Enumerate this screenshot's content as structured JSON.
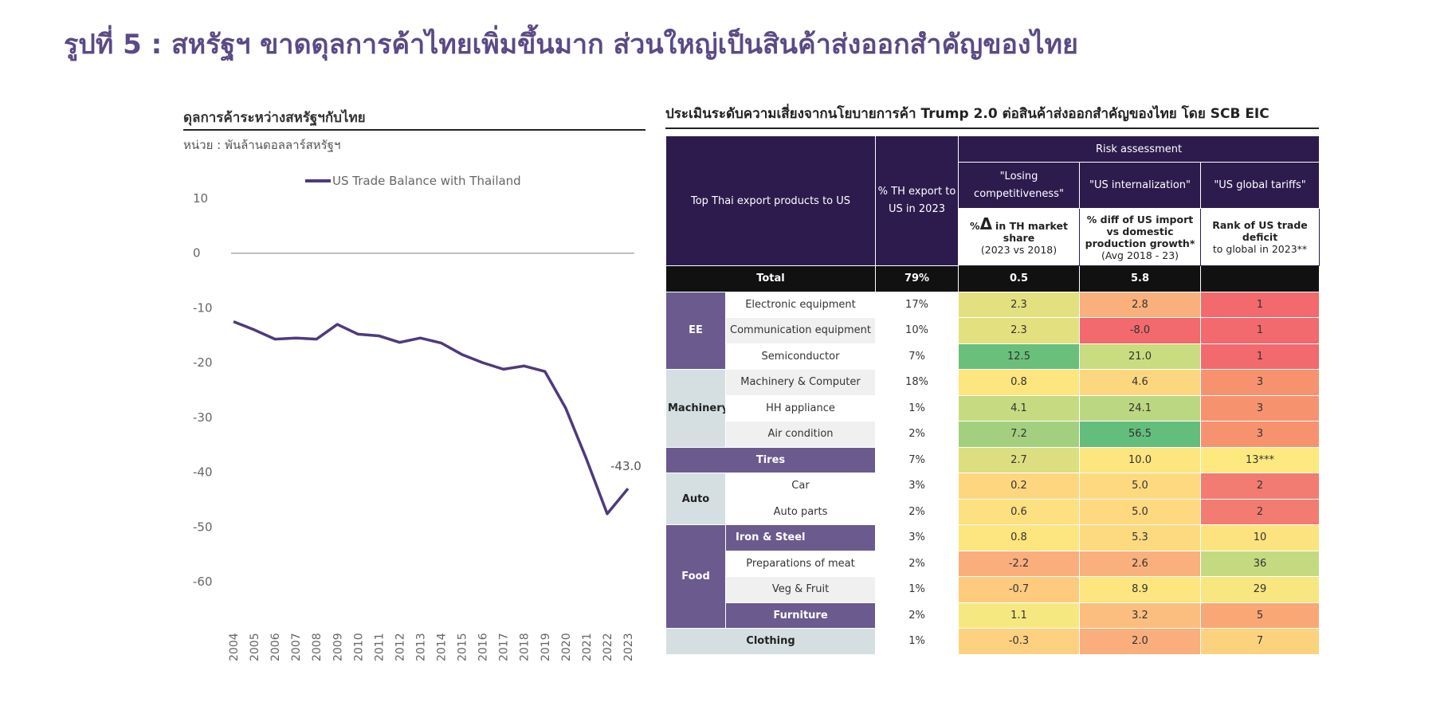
{
  "page": {
    "title": "รูปที่ 5 : สหรัฐฯ ขาดดุลการค้าไทยเพิ่มขึ้นมาก ส่วนใหญ่เป็นสินค้าส่งออกสำคัญของไทย"
  },
  "chart_data": {
    "type": "line",
    "title": "ดุลการค้าระหว่างสหรัฐฯกับไทย",
    "subtitle": "หน่วย : พันล้านดอลลาร์สหรัฐฯ",
    "xlabel": "",
    "ylabel": "",
    "ylim": [
      -60,
      10
    ],
    "yticks": [
      10,
      0,
      -10,
      -20,
      -30,
      -40,
      -50,
      -60
    ],
    "x": [
      "2004",
      "2005",
      "2006",
      "2007",
      "2008",
      "2009",
      "2010",
      "2011",
      "2012",
      "2013",
      "2014",
      "2015",
      "2016",
      "2017",
      "2018",
      "2019",
      "2020",
      "2021",
      "2022",
      "2023"
    ],
    "series": [
      {
        "name": "US Trade Balance with Thailand",
        "color": "#4e3a7d",
        "values": [
          -12.5,
          -14.0,
          -15.7,
          -15.5,
          -15.7,
          -13.0,
          -14.8,
          -15.1,
          -16.3,
          -15.5,
          -16.4,
          -18.5,
          -20.0,
          -21.2,
          -20.6,
          -21.6,
          -28.3,
          -37.6,
          -47.6,
          -43.0
        ]
      }
    ],
    "annotations": [
      {
        "x": "2023",
        "y": -43.0,
        "text": "-43.0"
      }
    ],
    "legend": "top",
    "grid": false,
    "zero_line_color": "#aaaaaa"
  },
  "table": {
    "title": "ประเมินระดับความเสี่ยงจากนโยบายการค้า Trump 2.0 ต่อสินค้าส่งออกสำคัญของไทย โดย SCB EIC",
    "header": {
      "products": "Top Thai export products to US",
      "share": "% TH export to US in 2023",
      "risk": "Risk assessment",
      "col1": "\"Losing competitiveness\"",
      "col2": "\"US internalization\"",
      "col3": "\"US global tariffs\"",
      "col1_delta": "%",
      "col1_delta_symbol": "Δ",
      "col1_sub": "in TH market share",
      "col1_sub2": "(2023 vs 2018)",
      "col2_sub": "% diff of US import vs domestic production growth*",
      "col2_sub2": "(Avg 2018 - 23)",
      "col3_sub": "Rank of US trade deficit",
      "col3_sub2": "to global in 2023**"
    },
    "total": {
      "label": "Total",
      "share": "79%",
      "v1": "0.5",
      "v2": "5.8",
      "v3": ""
    },
    "groups": {
      "ee": "EE",
      "machinery": "Machinery",
      "auto": "Auto",
      "food": "Food"
    },
    "rows": [
      {
        "item": "Electronic equipment",
        "share": "17%",
        "v1": "2.3",
        "v2": "2.8",
        "v3": "1",
        "c1": "#e3e07f",
        "c2": "#f9b07c",
        "c3": "#f2696e"
      },
      {
        "item": "Communication equipment",
        "share": "10%",
        "v1": "2.3",
        "v2": "-8.0",
        "v3": "1",
        "c1": "#e3e07f",
        "c2": "#f2696e",
        "c3": "#f2696e"
      },
      {
        "item": "Semiconductor",
        "share": "7%",
        "v1": "12.5",
        "v2": "21.0",
        "v3": "1",
        "c1": "#6abf7b",
        "c2": "#c9dc7f",
        "c3": "#f2696e"
      },
      {
        "item": "Machinery & Computer",
        "share": "18%",
        "v1": "0.8",
        "v2": "4.6",
        "v3": "3",
        "c1": "#fde57f",
        "c2": "#fdd780",
        "c3": "#f7926f"
      },
      {
        "item": "HH appliance",
        "share": "1%",
        "v1": "4.1",
        "v2": "24.1",
        "v3": "3",
        "c1": "#c6db81",
        "c2": "#bcd781",
        "c3": "#f7926f"
      },
      {
        "item": "Air condition",
        "share": "2%",
        "v1": "7.2",
        "v2": "56.5",
        "v3": "3",
        "c1": "#a3d07e",
        "c2": "#63be7b",
        "c3": "#f7926f"
      },
      {
        "item": "Tires",
        "share": "7%",
        "v1": "2.7",
        "v2": "10.0",
        "v3": "13***",
        "c1": "#dcde80",
        "c2": "#fde57f",
        "c3": "#fde97f"
      },
      {
        "item": "Car",
        "share": "3%",
        "v1": "0.2",
        "v2": "5.0",
        "v3": "2",
        "c1": "#fed680",
        "c2": "#fed97f",
        "c3": "#f27c71"
      },
      {
        "item": "Auto parts",
        "share": "2%",
        "v1": "0.6",
        "v2": "5.0",
        "v3": "2",
        "c1": "#fde07f",
        "c2": "#fed97f",
        "c3": "#f27c71"
      },
      {
        "item": "Iron & Steel",
        "share": "3%",
        "v1": "0.8",
        "v2": "5.3",
        "v3": "10",
        "c1": "#fde57f",
        "c2": "#fdda80",
        "c3": "#fde37f"
      },
      {
        "item": "Preparations of meat",
        "share": "2%",
        "v1": "-2.2",
        "v2": "2.6",
        "v3": "36",
        "c1": "#f9ae7c",
        "c2": "#f9b07c",
        "c3": "#c4da81"
      },
      {
        "item": "Veg & Fruit",
        "share": "1%",
        "v1": "-0.7",
        "v2": "8.9",
        "v3": "29",
        "c1": "#fdca7e",
        "c2": "#fde57f",
        "c3": "#f8e680"
      },
      {
        "item": "Furniture",
        "share": "2%",
        "v1": "1.1",
        "v2": "3.2",
        "v3": "5",
        "c1": "#f6e881",
        "c2": "#fbbe7e",
        "c3": "#f9a775"
      },
      {
        "item": "Clothing",
        "share": "1%",
        "v1": "-0.3",
        "v2": "2.0",
        "v3": "7",
        "c1": "#fdd17f",
        "c2": "#f9ae7c",
        "c3": "#fdd27e"
      }
    ]
  }
}
